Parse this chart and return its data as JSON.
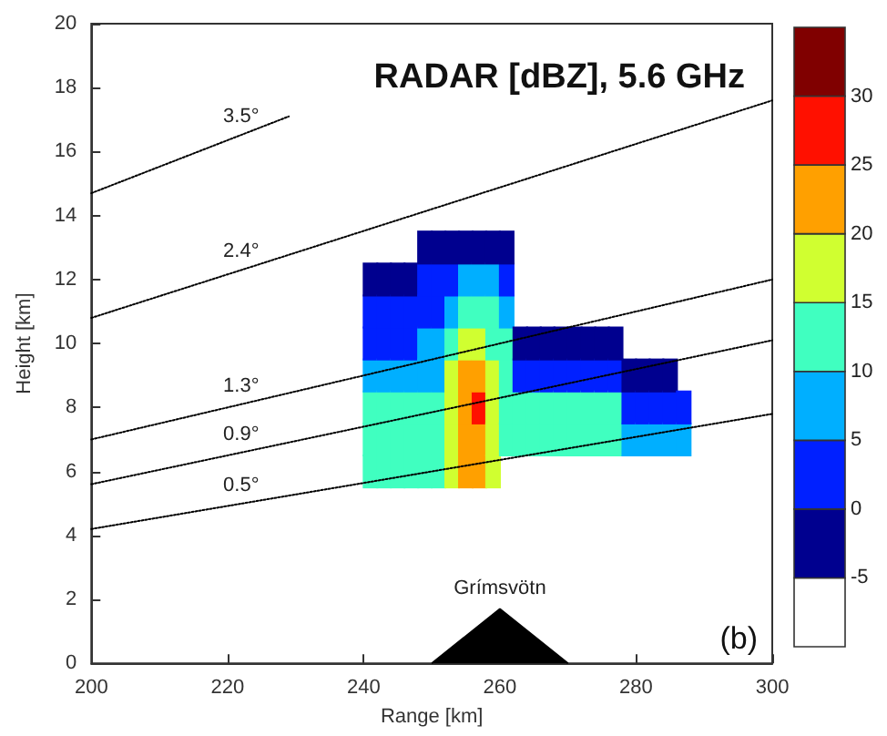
{
  "chart_data": {
    "type": "scatter",
    "title": "RADAR [dBZ], 5.6 GHz",
    "xlabel": "Range [km]",
    "ylabel": "Height [km]",
    "xlim": [
      200,
      300
    ],
    "xticks": [
      200,
      220,
      240,
      260,
      280,
      300
    ],
    "ylim": [
      0,
      20
    ],
    "yticks": [
      0,
      2,
      4,
      6,
      8,
      10,
      12,
      14,
      16,
      18,
      20
    ],
    "clim": [
      -10,
      35
    ],
    "cticks": [
      -5,
      0,
      5,
      10,
      15,
      20,
      25,
      30
    ],
    "colors": [
      "#ffffff",
      "#00008f",
      "#0020ff",
      "#00afff",
      "#40ffc0",
      "#d0ff30",
      "#ffa000",
      "#ff1000",
      "#800000"
    ],
    "series": [
      {
        "marker": "square",
        "x": [
          241,
          241,
          241,
          241,
          241,
          241,
          241,
          243,
          243,
          243,
          243,
          243,
          243,
          243,
          245,
          245,
          245,
          245,
          245,
          245,
          245,
          247,
          247,
          247,
          247,
          247,
          247,
          247,
          249,
          249,
          249,
          249,
          249,
          249,
          249,
          249,
          251,
          251,
          251,
          251,
          251,
          251,
          251,
          251,
          253,
          253,
          253,
          253,
          253,
          253,
          253,
          253,
          255,
          255,
          255,
          255,
          255,
          255,
          255,
          255,
          257,
          257,
          257,
          257,
          257,
          257,
          257,
          257,
          259,
          259,
          259,
          259,
          259,
          259,
          259,
          259,
          261,
          261,
          261,
          261,
          261,
          261,
          261,
          263,
          263,
          263,
          263,
          265,
          265,
          265,
          265,
          267,
          267,
          267,
          267,
          269,
          269,
          269,
          269,
          271,
          271,
          271,
          271,
          273,
          273,
          273,
          273,
          275,
          275,
          275,
          275,
          277,
          277,
          277,
          277,
          279,
          279,
          279,
          281,
          281,
          281,
          283,
          283,
          283,
          285,
          285,
          285,
          287,
          287
        ],
        "values": [
          6,
          7,
          8,
          9,
          10,
          11,
          12,
          6,
          7,
          8,
          9,
          10,
          11,
          12,
          6,
          7,
          8,
          9,
          10,
          11,
          12,
          6,
          7,
          8,
          9,
          10,
          11,
          12,
          6,
          7,
          8,
          9,
          10,
          11,
          12,
          13,
          6,
          7,
          8,
          9,
          10,
          11,
          12,
          13,
          6,
          7,
          8,
          9,
          10,
          11,
          12,
          13,
          6,
          7,
          8,
          9,
          10,
          11,
          12,
          13,
          6,
          7,
          8,
          9,
          10,
          11,
          12,
          13,
          6,
          7,
          8,
          9,
          10,
          11,
          12,
          13,
          7,
          8,
          9,
          10,
          11,
          12,
          13,
          7,
          8,
          9,
          10,
          7,
          8,
          9,
          10,
          7,
          8,
          9,
          10,
          7,
          8,
          9,
          10,
          7,
          8,
          9,
          10,
          7,
          8,
          9,
          10,
          7,
          8,
          9,
          10,
          7,
          8,
          9,
          10,
          7,
          8,
          9,
          7,
          8,
          9,
          7,
          8,
          9,
          7,
          8,
          9,
          7,
          8
        ],
        "colors": [
          "#40ffc0",
          "#40ffc0",
          "#40ffc0",
          "#00afff",
          "#0020ff",
          "#0020ff",
          "#00008f",
          "#40ffc0",
          "#40ffc0",
          "#40ffc0",
          "#00afff",
          "#0020ff",
          "#0020ff",
          "#00008f",
          "#40ffc0",
          "#40ffc0",
          "#40ffc0",
          "#00afff",
          "#0020ff",
          "#0020ff",
          "#00008f",
          "#40ffc0",
          "#40ffc0",
          "#40ffc0",
          "#00afff",
          "#0020ff",
          "#0020ff",
          "#00008f",
          "#40ffc0",
          "#40ffc0",
          "#40ffc0",
          "#00afff",
          "#00afff",
          "#0020ff",
          "#0020ff",
          "#00008f",
          "#40ffc0",
          "#40ffc0",
          "#40ffc0",
          "#00afff",
          "#00afff",
          "#0020ff",
          "#0020ff",
          "#00008f",
          "#d0ff30",
          "#d0ff30",
          "#d0ff30",
          "#d0ff30",
          "#40ffc0",
          "#00afff",
          "#0020ff",
          "#00008f",
          "#ffa000",
          "#ffa000",
          "#ffa000",
          "#ffa000",
          "#d0ff30",
          "#40ffc0",
          "#00afff",
          "#00008f",
          "#ffa000",
          "#ffa000",
          "#ff1000",
          "#ffa000",
          "#d0ff30",
          "#40ffc0",
          "#00afff",
          "#00008f",
          "#d0ff30",
          "#d0ff30",
          "#d0ff30",
          "#d0ff30",
          "#40ffc0",
          "#40ffc0",
          "#00afff",
          "#00008f",
          "#40ffc0",
          "#40ffc0",
          "#40ffc0",
          "#40ffc0",
          "#00afff",
          "#0020ff",
          "#00008f",
          "#40ffc0",
          "#40ffc0",
          "#0020ff",
          "#00008f",
          "#40ffc0",
          "#40ffc0",
          "#0020ff",
          "#00008f",
          "#40ffc0",
          "#40ffc0",
          "#0020ff",
          "#00008f",
          "#40ffc0",
          "#40ffc0",
          "#0020ff",
          "#00008f",
          "#40ffc0",
          "#40ffc0",
          "#0020ff",
          "#00008f",
          "#40ffc0",
          "#40ffc0",
          "#0020ff",
          "#00008f",
          "#40ffc0",
          "#40ffc0",
          "#0020ff",
          "#00008f",
          "#40ffc0",
          "#40ffc0",
          "#0020ff",
          "#00008f",
          "#00afff",
          "#0020ff",
          "#00008f",
          "#00afff",
          "#0020ff",
          "#00008f",
          "#00afff",
          "#0020ff",
          "#00008f",
          "#00afff",
          "#0020ff",
          "#00008f",
          "#00afff",
          "#0020ff"
        ]
      },
      {
        "type": "line",
        "name": "3.5°",
        "color": "#000000",
        "line_style": "dotted",
        "marker": "none",
        "x": [
          200,
          229
        ],
        "values": [
          14.7,
          17.1
        ]
      },
      {
        "type": "line",
        "name": "2.4°",
        "color": "#000000",
        "line_style": "dotted",
        "marker": "none",
        "x": [
          200,
          300
        ],
        "values": [
          10.8,
          17.6
        ]
      },
      {
        "type": "line",
        "name": "1.3°",
        "color": "#000000",
        "line_style": "dotted",
        "marker": "none",
        "x": [
          200,
          300
        ],
        "values": [
          7.0,
          12.0
        ]
      },
      {
        "type": "line",
        "name": "0.9°",
        "color": "#000000",
        "line_style": "dotted",
        "marker": "none",
        "x": [
          200,
          300
        ],
        "values": [
          5.6,
          10.1
        ]
      },
      {
        "type": "line",
        "name": "0.5°",
        "color": "#000000",
        "line_style": "dotted",
        "marker": "none",
        "x": [
          200,
          300
        ],
        "values": [
          4.2,
          7.8
        ]
      },
      {
        "type": "area",
        "name": "Grímsvötn",
        "color": "#000000",
        "marker": "none",
        "x": [
          250,
          260,
          270
        ],
        "values": [
          0,
          1.7,
          0
        ]
      }
    ],
    "annotations": [
      "(b)"
    ]
  }
}
